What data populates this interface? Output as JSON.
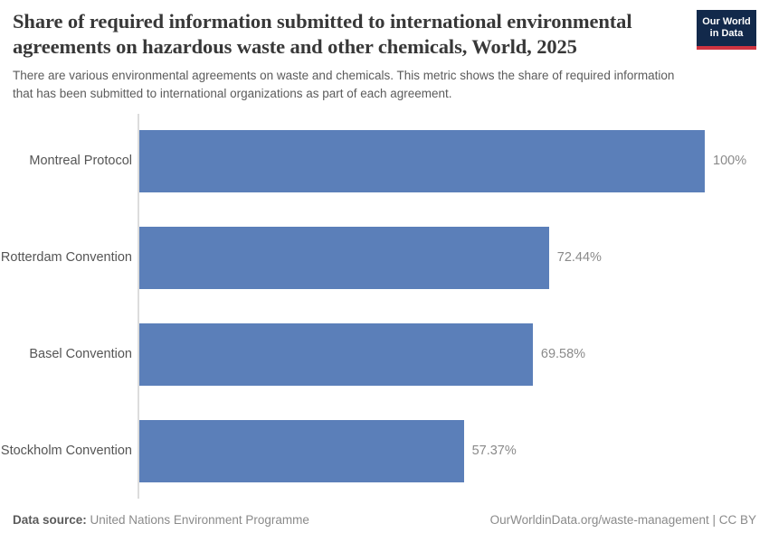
{
  "header": {
    "title": "Share of required information submitted to international environmental\nagreements on hazardous waste and other chemicals, World, 2025",
    "subtitle": "There are various environmental agreements on waste and chemicals. This metric shows the share of required information\nthat has been submitted to international organizations as part of each agreement."
  },
  "logo": {
    "line1": "Our World",
    "line2": "in Data",
    "bg_color": "#12294b",
    "stripe_color": "#cf3440"
  },
  "chart_data": {
    "type": "bar",
    "orientation": "horizontal",
    "title": "Share of required information submitted to international environmental agreements on hazardous waste and other chemicals, World, 2025",
    "categories": [
      "Montreal Protocol",
      "Rotterdam Convention",
      "Basel Convention",
      "Stockholm Convention"
    ],
    "values": [
      100,
      72.44,
      69.58,
      57.37
    ],
    "value_labels": [
      "100%",
      "72.44%",
      "69.58%",
      "57.37%"
    ],
    "xlim": [
      0,
      100
    ],
    "unit": "%",
    "bar_color": "#5b7fb9",
    "axis_color": "#dcdcdc",
    "grid": false,
    "legend": "none"
  },
  "footer": {
    "datasource_label": "Data source:",
    "datasource_value": " United Nations Environment Programme",
    "credit": "OurWorldinData.org/waste-management | CC BY"
  }
}
